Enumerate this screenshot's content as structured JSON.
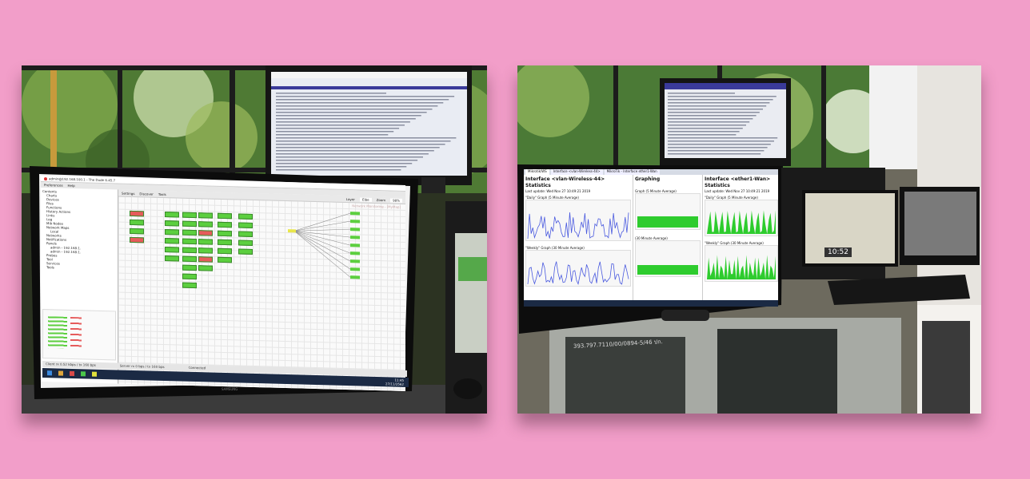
{
  "left_photo": {
    "window_title": "admin@192.168.100.1 - The Dude 6.45.7",
    "menu": [
      "Preferences",
      "Help"
    ],
    "toolbar": {
      "settings_label": "Settings",
      "discover_label": "Discover",
      "tools_label": "Tools",
      "layer_label": "Layer",
      "layer_value": "Elbe",
      "zoom_label": "Zoom",
      "zoom_value": "98%"
    },
    "map_title": "Network Monitoring - [MyMap]",
    "sidebar_items": [
      "Contents",
      "Charts",
      "Devices",
      "Files",
      "Functions",
      "History Actions",
      "Links",
      "Log",
      "Mib Nodes",
      "Network Maps",
      "Local",
      "Networks",
      "Notifications",
      "Panels",
      "admin - 192.168.1.",
      "admin - 192.168.1.",
      "Probes",
      "Tool",
      "Services",
      "Tools"
    ],
    "status_left": "Client rx 0.52 kbps / tx 160 bps",
    "status_mid": "Server rx 0 bps / tx 160 bps",
    "status_right": "Connected",
    "clock": "11:45",
    "date": "27/11/2562",
    "monitor_brand": "SAMSUNG"
  },
  "right_photo": {
    "tab_labels": [
      "Mikrotik/WS",
      "Interface <vlan-Wireless-44>",
      "MikroTik - Interface ether1-Wan"
    ],
    "panel1_title": "Interface <vlan-Wireless-44> Statistics",
    "panel1_updated": "Last update: Wed Nov 27 10:49:21 2019",
    "panel1_daily": "\"Daily\" Graph (5 Minute Average)",
    "panel1_weekly": "\"Weekly\" Graph (30 Minute Average)",
    "panel2_title": "Graphing",
    "panel2_caption": "Graph (5 Minute Average)",
    "panel2_caption2": "(30 Minute Average)",
    "panel3_title": "Interface <ether1-Wan> Statistics",
    "panel3_updated": "Last update: Wed Nov 27 10:49:21 2019",
    "panel3_daily": "\"Daily\" Graph (5 Minute Average)",
    "panel3_weekly": "\"Weekly\" Graph (30 Minute Average)",
    "small_monitor_clock": "10:52",
    "cabinet_label": "393.797.7110/00/0894-5/46 ปก."
  },
  "colors": {
    "background": "#f29ec9",
    "node_green": "#5ccf3f",
    "node_red": "#e65b5b",
    "graph_green": "#2ecc2e",
    "graph_blue": "#4a5adf"
  }
}
